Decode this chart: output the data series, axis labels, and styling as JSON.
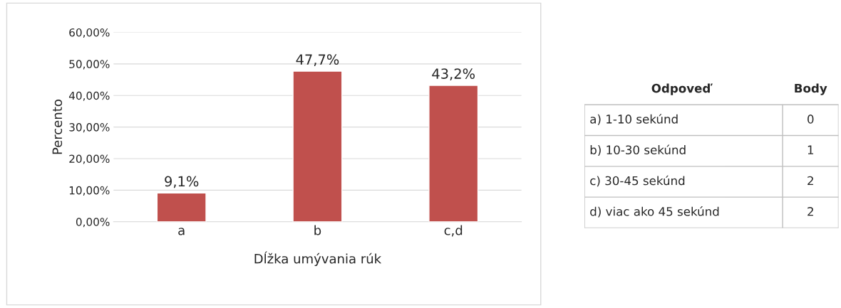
{
  "chart_data": [
    {
      "type": "bar",
      "xlabel": "Dĺžka umývania rúk",
      "ylabel": "Percento",
      "categories": [
        "a",
        "b",
        "c,d"
      ],
      "values": [
        9.1,
        47.7,
        43.2
      ],
      "value_labels": [
        "9,1%",
        "47,7%",
        "43,2%"
      ],
      "color": "#c0504d",
      "ylim": [
        0,
        60
      ],
      "yticks": [
        {
          "value": 0,
          "label": "0,00%"
        },
        {
          "value": 10,
          "label": "10,00%"
        },
        {
          "value": 20,
          "label": "20,00%"
        },
        {
          "value": 30,
          "label": "30,00%"
        },
        {
          "value": 40,
          "label": "40,00%"
        },
        {
          "value": 50,
          "label": "50,00%"
        },
        {
          "value": 60,
          "label": "60,00%"
        }
      ],
      "grid": "y",
      "legend": false
    },
    {
      "type": "other",
      "annotations": [
        "Odpoveď",
        "Body"
      ],
      "categories": [
        "a) 1-10 sekúnd",
        "b) 10-30 sekúnd",
        "c) 30-45 sekúnd",
        "d) viac ako 45 sekúnd"
      ],
      "values": [
        0,
        1,
        2,
        2
      ],
      "data_labels": true
    }
  ]
}
